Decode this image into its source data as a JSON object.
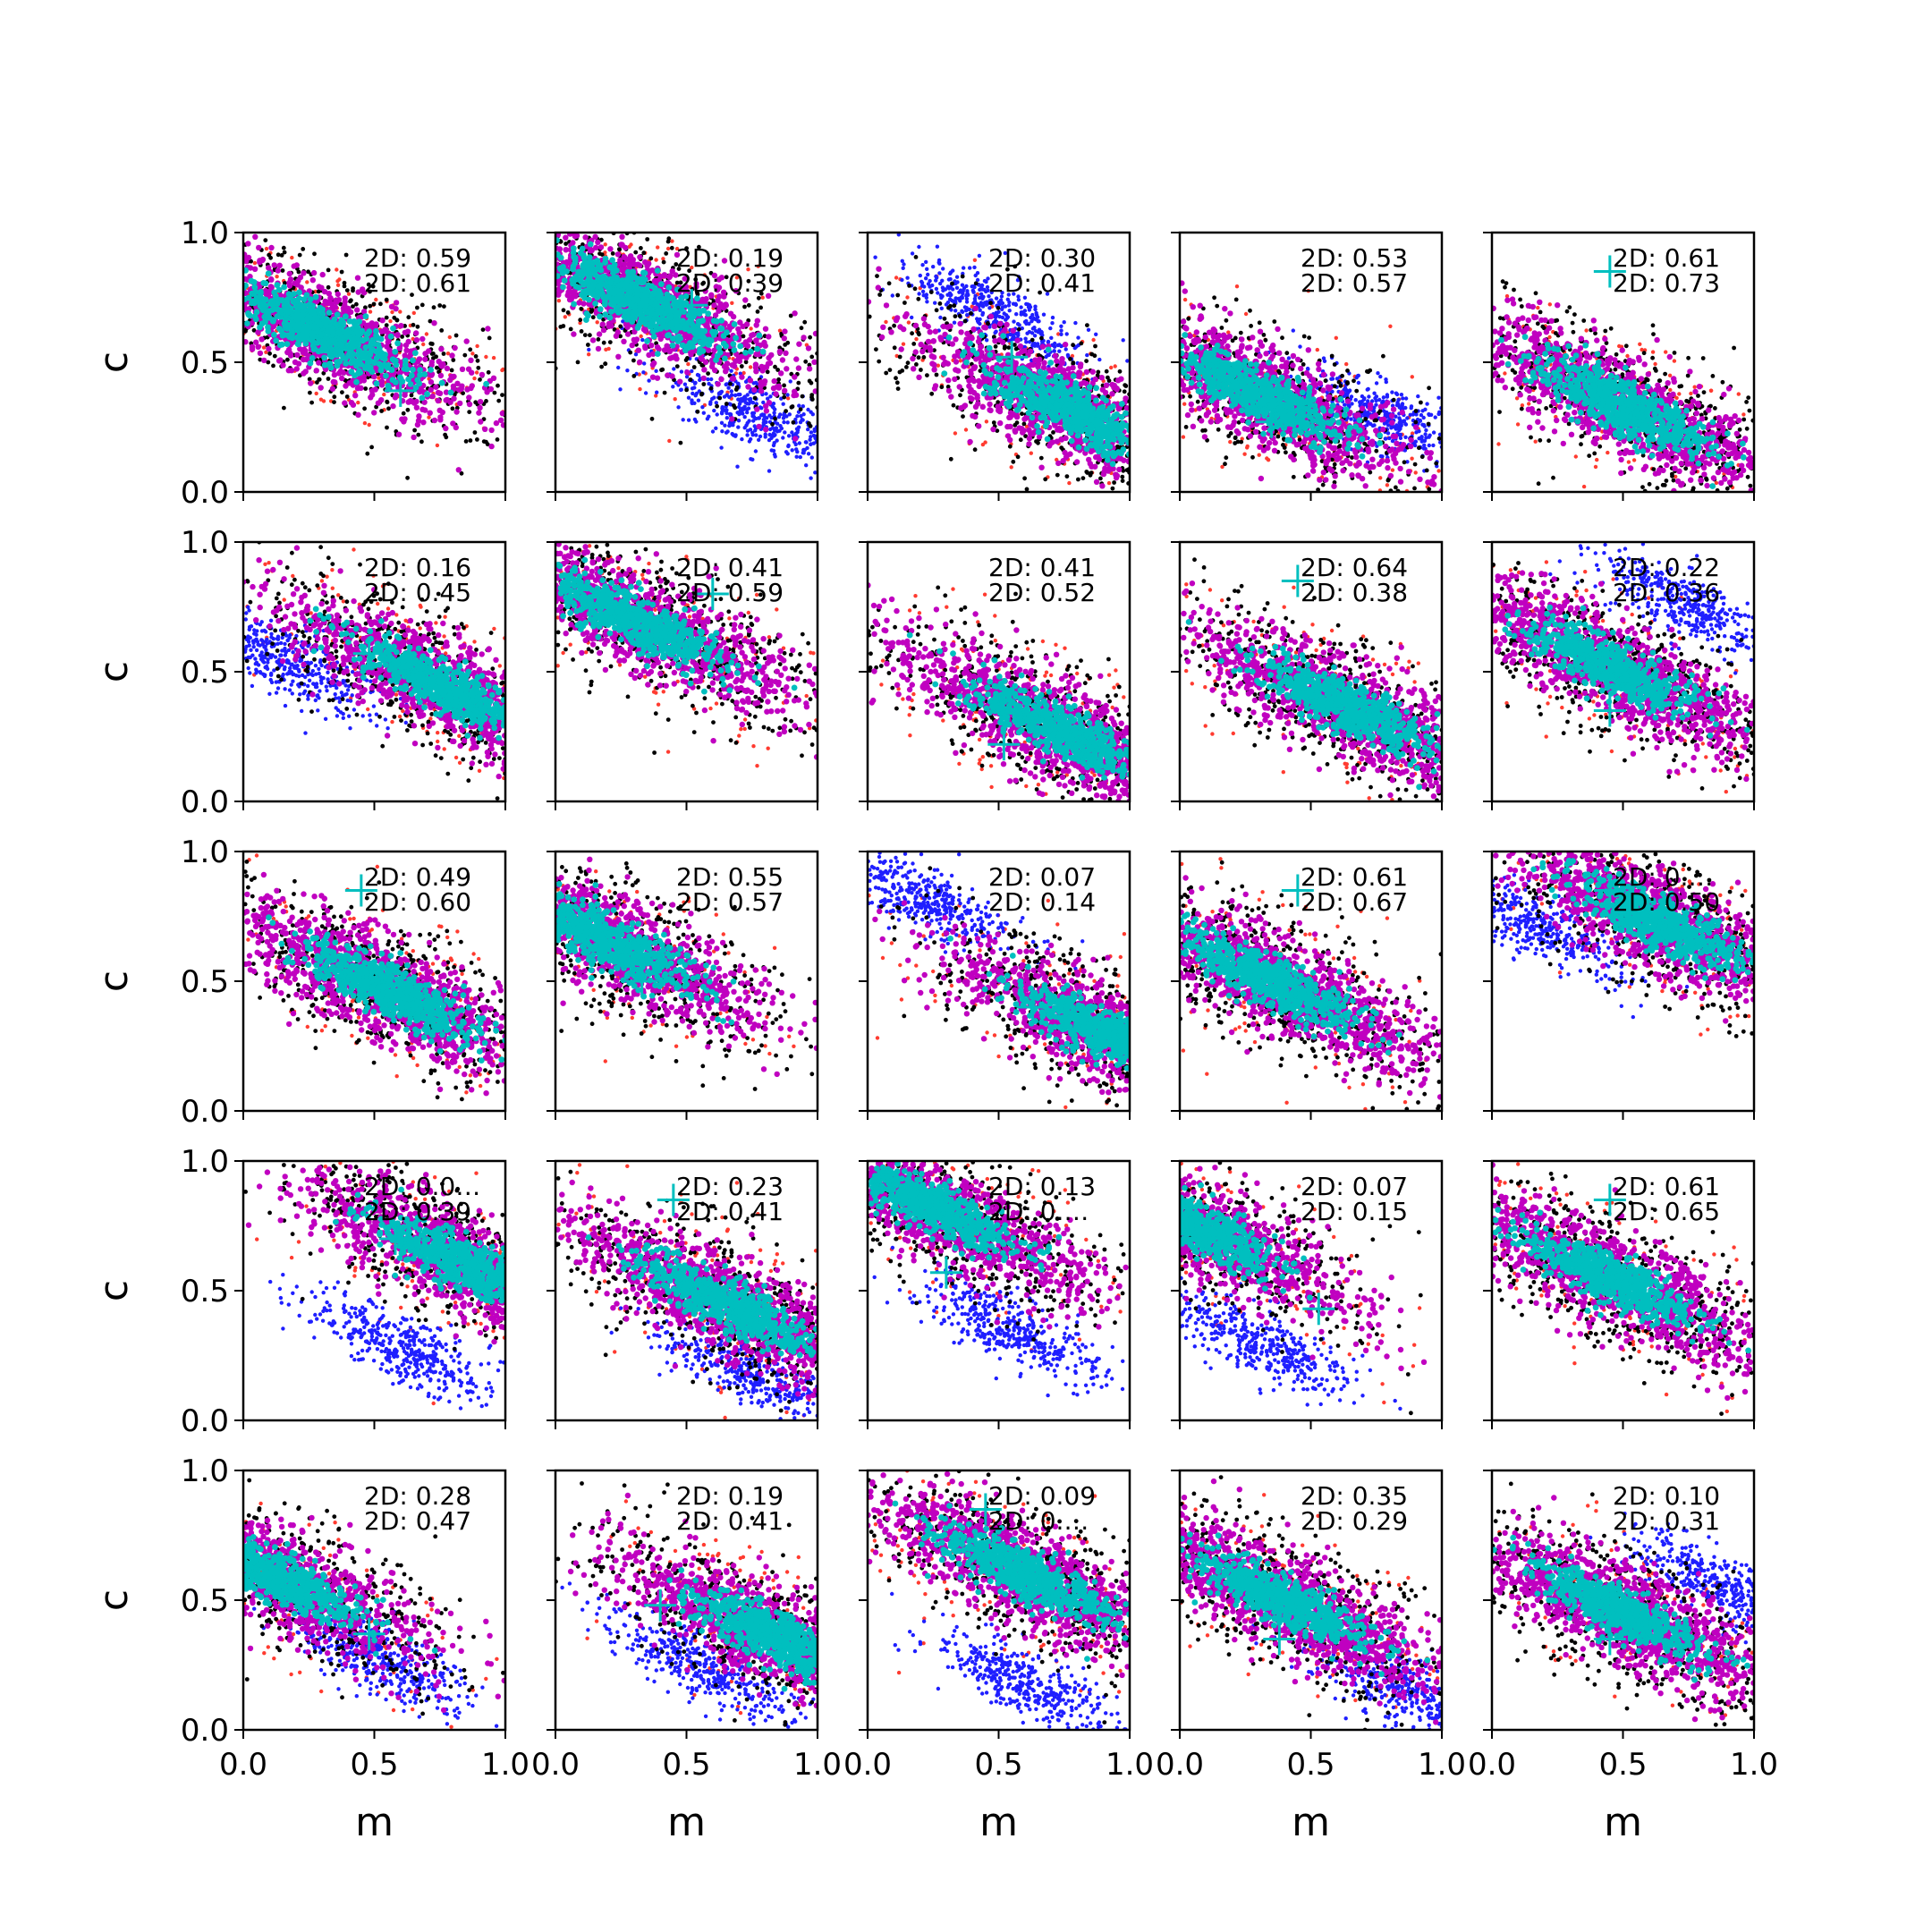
{
  "figure": {
    "xlabel": "m",
    "ylabel": "c",
    "xlim": [
      0,
      1
    ],
    "ylim": [
      0,
      1
    ],
    "xticks": [
      "0.0",
      "0.5",
      "1.0"
    ],
    "yticks": [
      "0.0",
      "0.5",
      "1.0"
    ],
    "colors": {
      "outer": "#000000",
      "outlier": "#ff3b30",
      "alt": "#1f1fff",
      "middle": "#c000c0",
      "core": "#00bfbf",
      "marker": "#00bfbf"
    }
  },
  "chart_data": {
    "type": "scatter",
    "grid": false,
    "legend": "none",
    "xlabel": "m",
    "ylabel": "c",
    "xlim": [
      0,
      1
    ],
    "ylim": [
      0,
      1
    ],
    "rows": 5,
    "cols": 5,
    "panels": [
      {
        "row": 0,
        "col": 0,
        "annotations": [
          "2D: 0.59",
          "2D: 0.61"
        ],
        "marker": [
          0.6,
          0.39
        ],
        "core": [
          0.3,
          0.62
        ],
        "alt": null
      },
      {
        "row": 0,
        "col": 1,
        "annotations": [
          "2D: 0.19",
          "2D: 0.39"
        ],
        "marker": [
          0.52,
          0.72
        ],
        "core": [
          0.3,
          0.75
        ],
        "alt": [
          0.75,
          0.3
        ]
      },
      {
        "row": 0,
        "col": 2,
        "annotations": [
          "2D: 0.30",
          "2D: 0.41"
        ],
        "marker": [
          0.55,
          0.52
        ],
        "core": [
          0.8,
          0.3
        ],
        "alt": [
          0.5,
          0.68
        ]
      },
      {
        "row": 0,
        "col": 3,
        "annotations": [
          "2D: 0.53",
          "2D: 0.57"
        ],
        "marker": [
          0.35,
          0.27
        ],
        "core": [
          0.3,
          0.38
        ],
        "alt": [
          0.8,
          0.28
        ]
      },
      {
        "row": 0,
        "col": 4,
        "annotations": [
          "2D: 0.61",
          "2D: 0.73"
        ],
        "marker": [
          0.45,
          0.85
        ],
        "core": [
          0.5,
          0.33
        ],
        "alt": null
      },
      {
        "row": 1,
        "col": 0,
        "annotations": [
          "2D: 0.16",
          "2D: 0.45"
        ],
        "marker": [
          0.48,
          0.57
        ],
        "core": [
          0.75,
          0.45
        ],
        "alt": [
          0.15,
          0.55
        ]
      },
      {
        "row": 1,
        "col": 1,
        "annotations": [
          "2D: 0.41",
          "2D: 0.59"
        ],
        "marker": [
          0.6,
          0.8
        ],
        "core": [
          0.3,
          0.7
        ],
        "alt": null
      },
      {
        "row": 1,
        "col": 2,
        "annotations": [
          "2D: 0.41",
          "2D: 0.52"
        ],
        "marker": [
          0.52,
          0.22
        ],
        "core": [
          0.72,
          0.28
        ],
        "alt": null
      },
      {
        "row": 1,
        "col": 3,
        "annotations": [
          "2D: 0.64",
          "2D: 0.38"
        ],
        "marker": [
          0.45,
          0.85
        ],
        "core": [
          0.65,
          0.35
        ],
        "alt": null
      },
      {
        "row": 1,
        "col": 4,
        "annotations": [
          "2D: 0.22",
          "2D: 0.36"
        ],
        "marker": [
          0.45,
          0.35
        ],
        "core": [
          0.45,
          0.52
        ],
        "alt": [
          0.75,
          0.75
        ]
      },
      {
        "row": 2,
        "col": 0,
        "annotations": [
          "2D: 0.49",
          "2D: 0.60"
        ],
        "marker": [
          0.45,
          0.85
        ],
        "core": [
          0.55,
          0.47
        ],
        "alt": null
      },
      {
        "row": 2,
        "col": 1,
        "annotations": [
          "2D: 0.55",
          "2D: 0.57"
        ],
        "marker": [
          0.33,
          0.5
        ],
        "core": [
          0.2,
          0.65
        ],
        "alt": null
      },
      {
        "row": 2,
        "col": 2,
        "annotations": [
          "2D: 0.07",
          "2D: 0.14"
        ],
        "marker": [
          0.63,
          0.4
        ],
        "core": [
          0.9,
          0.3
        ],
        "alt": [
          0.2,
          0.82
        ]
      },
      {
        "row": 2,
        "col": 3,
        "annotations": [
          "2D: 0.61",
          "2D: 0.67"
        ],
        "marker": [
          0.45,
          0.85
        ],
        "core": [
          0.35,
          0.5
        ],
        "alt": null
      },
      {
        "row": 2,
        "col": 4,
        "annotations": [
          "2D: 0.…",
          "2D: 0.50"
        ],
        "marker": [
          0.45,
          0.85
        ],
        "core": [
          0.65,
          0.72
        ],
        "alt": [
          0.15,
          0.72
        ]
      },
      {
        "row": 3,
        "col": 0,
        "annotations": [
          "2D: 0.0…",
          "2D: 0.39"
        ],
        "marker": [
          0.58,
          0.7
        ],
        "core": [
          0.85,
          0.6
        ],
        "alt": [
          0.6,
          0.28
        ]
      },
      {
        "row": 3,
        "col": 1,
        "annotations": [
          "2D: 0.23",
          "2D: 0.41"
        ],
        "marker": [
          0.45,
          0.85
        ],
        "core": [
          0.65,
          0.45
        ],
        "alt": [
          0.75,
          0.18
        ]
      },
      {
        "row": 3,
        "col": 2,
        "annotations": [
          "2D: 0.13",
          "2D: 0.…"
        ],
        "marker": [
          0.3,
          0.57
        ],
        "core": [
          0.25,
          0.82
        ],
        "alt": [
          0.55,
          0.35
        ]
      },
      {
        "row": 3,
        "col": 3,
        "annotations": [
          "2D: 0.07",
          "2D: 0.15"
        ],
        "marker": [
          0.53,
          0.43
        ],
        "core": [
          0.05,
          0.75
        ],
        "alt": [
          0.3,
          0.3
        ]
      },
      {
        "row": 3,
        "col": 4,
        "annotations": [
          "2D: 0.61",
          "2D: 0.65"
        ],
        "marker": [
          0.45,
          0.85
        ],
        "core": [
          0.45,
          0.55
        ],
        "alt": null
      },
      {
        "row": 4,
        "col": 0,
        "annotations": [
          "2D: 0.28",
          "2D: 0.47"
        ],
        "marker": [
          0.48,
          0.37
        ],
        "core": [
          0.1,
          0.6
        ],
        "alt": [
          0.5,
          0.28
        ]
      },
      {
        "row": 4,
        "col": 1,
        "annotations": [
          "2D: 0.19",
          "2D: 0.41"
        ],
        "marker": [
          0.4,
          0.48
        ],
        "core": [
          0.85,
          0.35
        ],
        "alt": [
          0.55,
          0.25
        ]
      },
      {
        "row": 4,
        "col": 2,
        "annotations": [
          "2D: 0.09",
          "2D: 0.…"
        ],
        "marker": [
          0.45,
          0.85
        ],
        "core": [
          0.6,
          0.6
        ],
        "alt": [
          0.6,
          0.18
        ]
      },
      {
        "row": 4,
        "col": 3,
        "annotations": [
          "2D: 0.35",
          "2D: 0.29"
        ],
        "marker": [
          0.38,
          0.35
        ],
        "core": [
          0.4,
          0.5
        ],
        "alt": [
          0.85,
          0.15
        ]
      },
      {
        "row": 4,
        "col": 4,
        "annotations": [
          "2D: 0.10",
          "2D: 0.31"
        ],
        "marker": [
          0.45,
          0.35
        ],
        "core": [
          0.5,
          0.45
        ],
        "alt": [
          0.9,
          0.55
        ]
      }
    ]
  }
}
